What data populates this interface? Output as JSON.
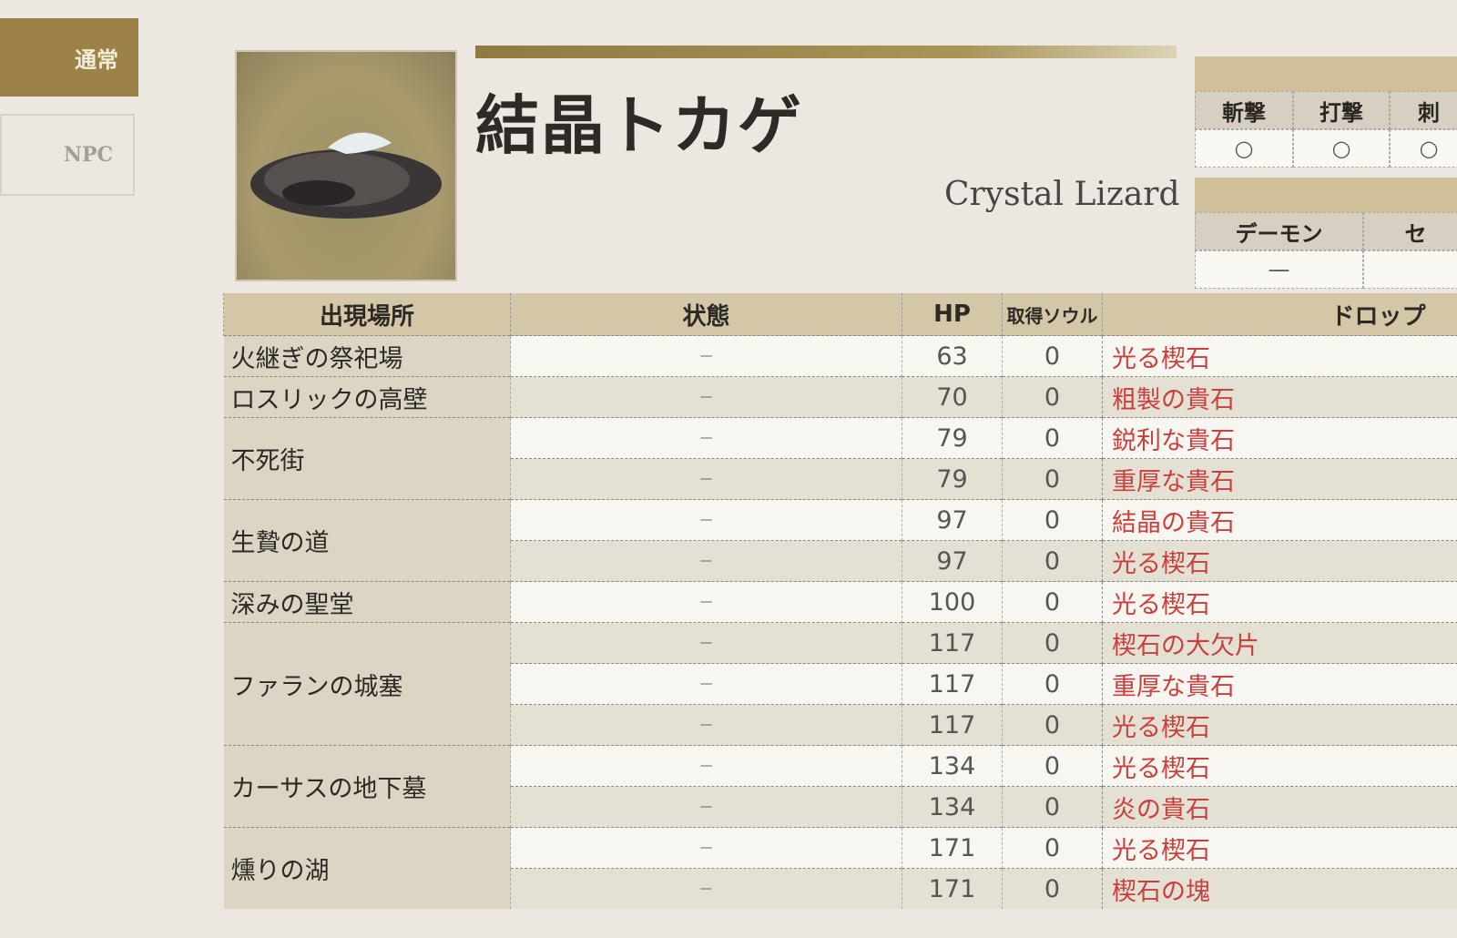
{
  "tabs": {
    "active": "通常",
    "npc": "NPC"
  },
  "enemy": {
    "name_ja": "結晶トカゲ",
    "name_en": "Crystal Lizard"
  },
  "attack_table": {
    "headers": [
      "斬撃",
      "打撃",
      "刺"
    ],
    "values": [
      "○",
      "○",
      "○"
    ]
  },
  "type_table": {
    "headers": [
      "デーモン",
      "セ"
    ],
    "values": [
      "—",
      ""
    ]
  },
  "table": {
    "headers": {
      "location": "出現場所",
      "status": "状態",
      "hp": "HP",
      "souls": "取得ソウル",
      "drop": "ドロップ"
    },
    "groups": [
      {
        "location": "火継ぎの祭祀場",
        "rows": [
          {
            "status": "—",
            "hp": "63",
            "souls": "0",
            "drop": "光る楔石"
          }
        ]
      },
      {
        "location": "ロスリックの高壁",
        "rows": [
          {
            "status": "—",
            "hp": "70",
            "souls": "0",
            "drop": "粗製の貴石"
          }
        ]
      },
      {
        "location": "不死街",
        "rows": [
          {
            "status": "—",
            "hp": "79",
            "souls": "0",
            "drop": "鋭利な貴石"
          },
          {
            "status": "—",
            "hp": "79",
            "souls": "0",
            "drop": "重厚な貴石"
          }
        ]
      },
      {
        "location": "生贄の道",
        "rows": [
          {
            "status": "—",
            "hp": "97",
            "souls": "0",
            "drop": "結晶の貴石"
          },
          {
            "status": "—",
            "hp": "97",
            "souls": "0",
            "drop": "光る楔石"
          }
        ]
      },
      {
        "location": "深みの聖堂",
        "rows": [
          {
            "status": "—",
            "hp": "100",
            "souls": "0",
            "drop": "光る楔石"
          }
        ]
      },
      {
        "location": "ファランの城塞",
        "rows": [
          {
            "status": "—",
            "hp": "117",
            "souls": "0",
            "drop": "楔石の大欠片"
          },
          {
            "status": "—",
            "hp": "117",
            "souls": "0",
            "drop": "重厚な貴石"
          },
          {
            "status": "—",
            "hp": "117",
            "souls": "0",
            "drop": "光る楔石"
          }
        ]
      },
      {
        "location": "カーサスの地下墓",
        "rows": [
          {
            "status": "—",
            "hp": "134",
            "souls": "0",
            "drop": "光る楔石"
          },
          {
            "status": "—",
            "hp": "134",
            "souls": "0",
            "drop": "炎の貴石"
          }
        ]
      },
      {
        "location": "燻りの湖",
        "rows": [
          {
            "status": "—",
            "hp": "171",
            "souls": "0",
            "drop": "光る楔石"
          },
          {
            "status": "—",
            "hp": "171",
            "souls": "0",
            "drop": "楔石の塊"
          }
        ]
      }
    ]
  }
}
